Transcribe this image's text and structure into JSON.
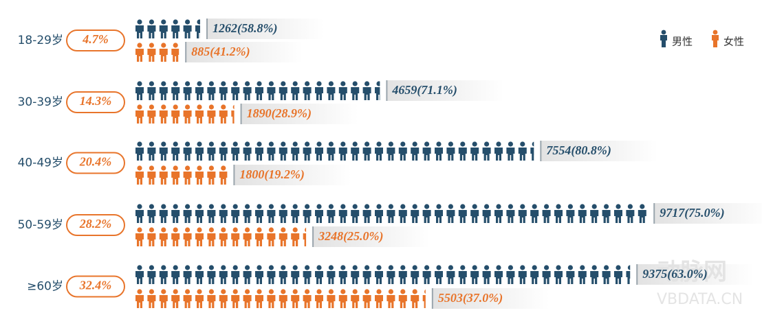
{
  "chart_data": {
    "type": "pictograph",
    "categories": [
      "18-29岁",
      "30-39岁",
      "40-49岁",
      "50-59岁",
      "≥60岁"
    ],
    "group_share": {
      "values": [
        4.7,
        14.3,
        20.4,
        28.2,
        32.4
      ],
      "value_labels": [
        "4.7%",
        "14.3%",
        "20.4%",
        "28.2%",
        "32.4%"
      ],
      "color": "#e8742a"
    },
    "series": [
      {
        "name": "男性",
        "color": "#254e6b",
        "values": [
          1262,
          4659,
          7554,
          9717,
          9375
        ],
        "value_labels": [
          "1262(58.8%)",
          "4659(71.1%)",
          "7554(80.8%)",
          "9717(75.0%)",
          "9375(63.0%)"
        ]
      },
      {
        "name": "女性",
        "color": "#e8742a",
        "values": [
          885,
          1890,
          1800,
          3248,
          5503
        ],
        "value_labels": [
          "885(41.2%)",
          "1890(28.9%)",
          "1800(19.2%)",
          "3248(25.0%)",
          "5503(37.0%)"
        ]
      }
    ],
    "legend": "top-right",
    "watermark": {
      "logo": "动脉网",
      "site": "VBDATA.CN"
    }
  }
}
